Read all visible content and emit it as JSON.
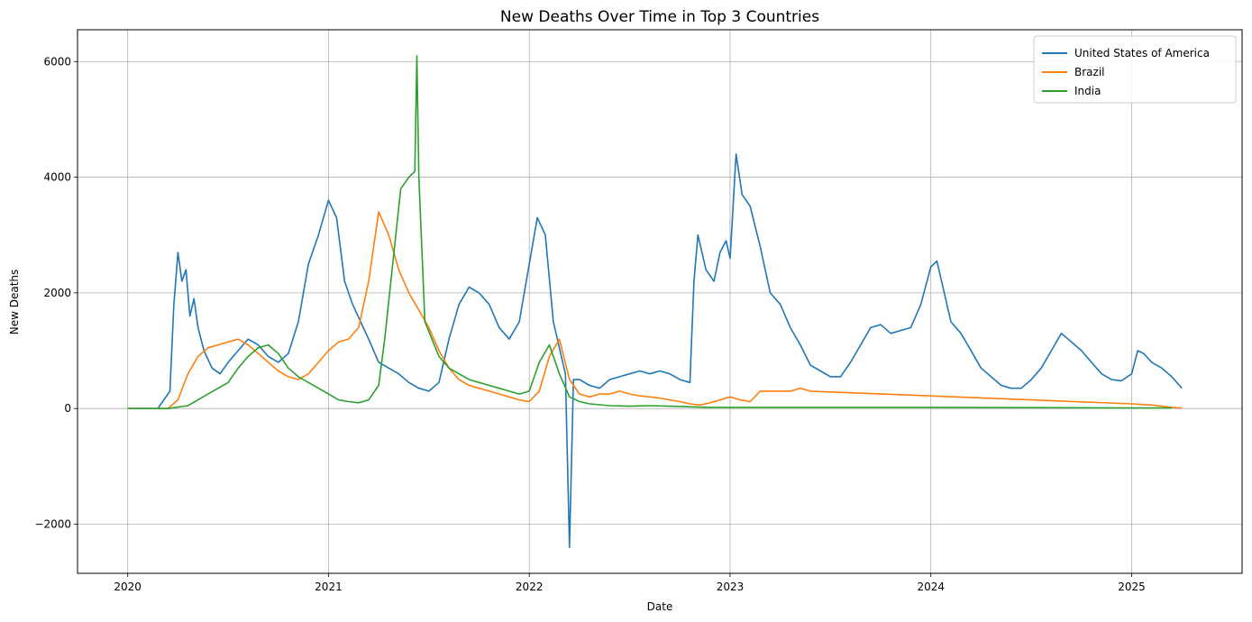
{
  "chart_data": {
    "type": "line",
    "title": "New Deaths Over Time in Top 3 Countries",
    "xlabel": "Date",
    "ylabel": "New Deaths",
    "xlim": [
      2019.75,
      2025.55
    ],
    "ylim": [
      -2850,
      6550
    ],
    "x_ticks": [
      2020,
      2021,
      2022,
      2023,
      2024,
      2025
    ],
    "x_tick_labels": [
      "2020",
      "2021",
      "2022",
      "2023",
      "2024",
      "2025"
    ],
    "y_ticks": [
      -2000,
      0,
      2000,
      4000,
      6000
    ],
    "y_tick_labels": [
      "−2000",
      "0",
      "2000",
      "4000",
      "6000"
    ],
    "grid": true,
    "legend_position": "top-right",
    "series": [
      {
        "name": "United States of America",
        "color": "#1f77b4",
        "x": [
          2020.0,
          2020.15,
          2020.21,
          2020.23,
          2020.25,
          2020.27,
          2020.29,
          2020.31,
          2020.33,
          2020.35,
          2020.38,
          2020.42,
          2020.46,
          2020.5,
          2020.55,
          2020.6,
          2020.65,
          2020.7,
          2020.75,
          2020.8,
          2020.85,
          2020.9,
          2020.95,
          2021.0,
          2021.04,
          2021.08,
          2021.12,
          2021.16,
          2021.2,
          2021.25,
          2021.3,
          2021.35,
          2021.4,
          2021.45,
          2021.5,
          2021.55,
          2021.6,
          2021.65,
          2021.7,
          2021.75,
          2021.8,
          2021.85,
          2021.9,
          2021.95,
          2022.0,
          2022.04,
          2022.08,
          2022.12,
          2022.16,
          2022.18,
          2022.2,
          2022.22,
          2022.25,
          2022.3,
          2022.35,
          2022.4,
          2022.45,
          2022.5,
          2022.55,
          2022.6,
          2022.65,
          2022.7,
          2022.75,
          2022.8,
          2022.82,
          2022.84,
          2022.88,
          2022.92,
          2022.95,
          2022.98,
          2023.0,
          2023.03,
          2023.06,
          2023.1,
          2023.15,
          2023.2,
          2023.25,
          2023.3,
          2023.35,
          2023.4,
          2023.45,
          2023.5,
          2023.55,
          2023.6,
          2023.65,
          2023.7,
          2023.75,
          2023.8,
          2023.85,
          2023.9,
          2023.95,
          2024.0,
          2024.03,
          2024.06,
          2024.1,
          2024.15,
          2024.2,
          2024.25,
          2024.3,
          2024.35,
          2024.4,
          2024.45,
          2024.5,
          2024.55,
          2024.6,
          2024.65,
          2024.7,
          2024.75,
          2024.8,
          2024.85,
          2024.9,
          2024.95,
          2025.0,
          2025.03,
          2025.06,
          2025.1,
          2025.15,
          2025.2,
          2025.25
        ],
        "y": [
          0,
          0,
          300,
          1800,
          2700,
          2200,
          2400,
          1600,
          1900,
          1400,
          1000,
          700,
          600,
          800,
          1000,
          1200,
          1100,
          900,
          800,
          950,
          1500,
          2500,
          3000,
          3600,
          3300,
          2200,
          1800,
          1500,
          1200,
          800,
          700,
          600,
          450,
          350,
          300,
          450,
          1200,
          1800,
          2100,
          2000,
          1800,
          1400,
          1200,
          1500,
          2500,
          3300,
          3000,
          1500,
          900,
          600,
          -2400,
          500,
          500,
          400,
          350,
          500,
          550,
          600,
          650,
          600,
          650,
          600,
          500,
          450,
          2200,
          3000,
          2400,
          2200,
          2700,
          2900,
          2600,
          4400,
          3700,
          3500,
          2800,
          2000,
          1800,
          1400,
          1100,
          750,
          650,
          550,
          550,
          800,
          1100,
          1400,
          1450,
          1300,
          1350,
          1400,
          1800,
          2450,
          2550,
          2100,
          1500,
          1300,
          1000,
          700,
          550,
          400,
          350,
          350,
          500,
          700,
          1000,
          1300,
          1150,
          1000,
          800,
          600,
          500,
          480,
          600,
          1000,
          950,
          800,
          700,
          550,
          350
        ]
      },
      {
        "name": "Brazil",
        "color": "#ff7f0e",
        "x": [
          2020.0,
          2020.2,
          2020.25,
          2020.3,
          2020.35,
          2020.4,
          2020.45,
          2020.5,
          2020.55,
          2020.6,
          2020.65,
          2020.7,
          2020.75,
          2020.8,
          2020.85,
          2020.9,
          2020.95,
          2021.0,
          2021.05,
          2021.1,
          2021.15,
          2021.2,
          2021.25,
          2021.3,
          2021.35,
          2021.4,
          2021.45,
          2021.5,
          2021.55,
          2021.6,
          2021.65,
          2021.7,
          2021.75,
          2021.8,
          2021.85,
          2021.9,
          2021.95,
          2022.0,
          2022.05,
          2022.1,
          2022.15,
          2022.2,
          2022.25,
          2022.3,
          2022.35,
          2022.4,
          2022.45,
          2022.5,
          2022.55,
          2022.6,
          2022.65,
          2022.7,
          2022.75,
          2022.8,
          2022.85,
          2022.9,
          2022.95,
          2023.0,
          2023.05,
          2023.1,
          2023.15,
          2023.2,
          2023.25,
          2023.3,
          2023.35,
          2023.4,
          2025.0,
          2025.1,
          2025.2,
          2025.25
        ],
        "y": [
          0,
          0,
          150,
          600,
          900,
          1050,
          1100,
          1150,
          1200,
          1100,
          950,
          800,
          650,
          550,
          500,
          600,
          800,
          1000,
          1150,
          1200,
          1400,
          2200,
          3400,
          3000,
          2400,
          2000,
          1700,
          1400,
          1000,
          700,
          500,
          400,
          350,
          300,
          250,
          200,
          150,
          120,
          300,
          900,
          1200,
          500,
          250,
          200,
          250,
          250,
          300,
          250,
          220,
          200,
          180,
          150,
          120,
          80,
          60,
          100,
          150,
          200,
          150,
          120,
          300,
          300,
          300,
          300,
          350,
          300,
          80,
          60,
          20,
          10
        ]
      },
      {
        "name": "India",
        "color": "#2ca02c",
        "x": [
          2020.0,
          2020.2,
          2020.3,
          2020.35,
          2020.4,
          2020.45,
          2020.5,
          2020.55,
          2020.6,
          2020.65,
          2020.7,
          2020.75,
          2020.8,
          2020.85,
          2020.9,
          2020.95,
          2021.0,
          2021.05,
          2021.1,
          2021.15,
          2021.2,
          2021.25,
          2021.28,
          2021.32,
          2021.36,
          2021.4,
          2021.43,
          2021.44,
          2021.45,
          2021.48,
          2021.55,
          2021.6,
          2021.65,
          2021.7,
          2021.75,
          2021.8,
          2021.85,
          2021.9,
          2021.95,
          2022.0,
          2022.05,
          2022.1,
          2022.15,
          2022.2,
          2022.25,
          2022.3,
          2022.4,
          2022.5,
          2022.6,
          2022.7,
          2022.8,
          2022.9,
          2023.0,
          2023.2,
          2023.4,
          2023.6,
          2023.8,
          2024.0,
          2024.5,
          2025.0,
          2025.2
        ],
        "y": [
          0,
          0,
          50,
          150,
          250,
          350,
          450,
          700,
          900,
          1050,
          1100,
          950,
          700,
          550,
          450,
          350,
          250,
          150,
          120,
          100,
          150,
          400,
          1200,
          2500,
          3800,
          4000,
          4100,
          6100,
          4000,
          1500,
          900,
          700,
          600,
          500,
          450,
          400,
          350,
          300,
          250,
          300,
          800,
          1100,
          600,
          200,
          120,
          80,
          50,
          40,
          50,
          40,
          30,
          20,
          20,
          20,
          20,
          20,
          20,
          20,
          15,
          10,
          10
        ]
      }
    ]
  }
}
